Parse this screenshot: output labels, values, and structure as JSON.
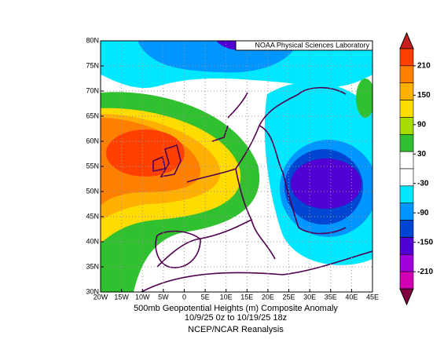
{
  "map": {
    "credit": "NOAA Physical Sciences Laboratory",
    "title_lines": [
      "500mb Geopotential Heights (m)    Composite Anomaly",
      "10/9/25 0z  to 10/19/25 18z",
      "NCEP/NCAR Reanalysis"
    ],
    "lon_ticks": [
      "20W",
      "15W",
      "10W",
      "5W",
      "0",
      "5E",
      "10E",
      "15E",
      "20E",
      "25E",
      "30E",
      "35E",
      "40E",
      "45E"
    ],
    "lat_ticks": [
      "80N",
      "75N",
      "70N",
      "65N",
      "60N",
      "55N",
      "50N",
      "45N",
      "40N",
      "35N",
      "30N"
    ],
    "colorbar": {
      "ticks": [
        210,
        150,
        90,
        30,
        -30,
        -90,
        -150,
        -210
      ],
      "colors": [
        "#c81e1e",
        "#ff4000",
        "#ff8000",
        "#ffb000",
        "#ffdc00",
        "#a8dc00",
        "#30c030",
        "#ffffff",
        "#ffffff",
        "#00e8ff",
        "#0096ff",
        "#0046d2",
        "#5000d2",
        "#a000dc",
        "#d200b4",
        "#800040"
      ]
    }
  }
}
